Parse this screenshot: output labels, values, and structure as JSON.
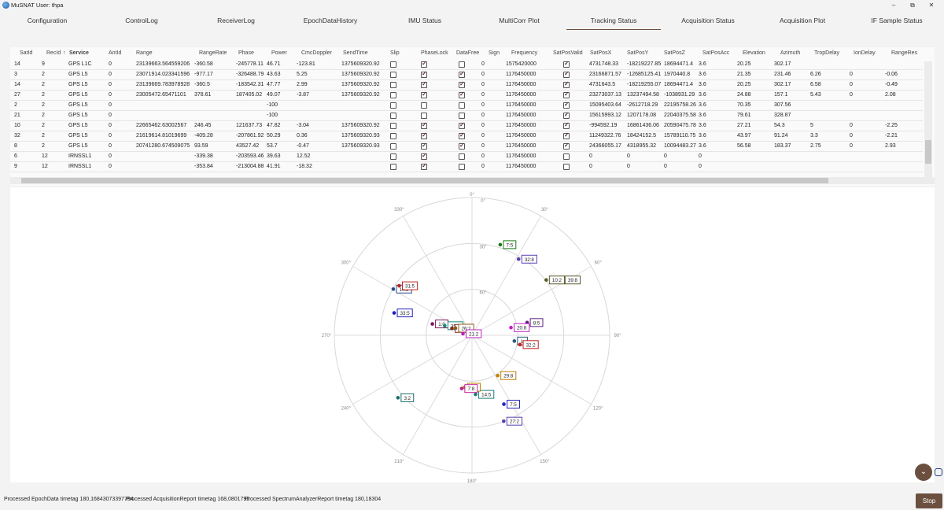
{
  "window": {
    "title": "MuSNAT User: thpa",
    "minimize": "–",
    "restore": "⧉",
    "close": "✕"
  },
  "tabs": [
    {
      "label": "Configuration",
      "active": false
    },
    {
      "label": "ControlLog",
      "active": false
    },
    {
      "label": "ReceiverLog",
      "active": false
    },
    {
      "label": "EpochDataHistory",
      "active": false
    },
    {
      "label": "IMU Status",
      "active": false
    },
    {
      "label": "MultiCorr Plot",
      "active": false
    },
    {
      "label": "Tracking Status",
      "active": true
    },
    {
      "label": "Acquisition Status",
      "active": false
    },
    {
      "label": "Acquisition Plot",
      "active": false
    },
    {
      "label": "IF Sample Status",
      "active": false
    }
  ],
  "table": {
    "sort_indicator": "↑",
    "columns": [
      "SatId",
      "RecId",
      "Service",
      "AntId",
      "Range",
      "RangeRate",
      "Phase",
      "Power",
      "CmcDoppler",
      "SendTime",
      "Slip",
      "PhaseLock",
      "DataFree",
      "Sign",
      "Frequency",
      "SatPosValid",
      "SatPosX",
      "SatPosY",
      "SatPosZ",
      "SatPosAcc",
      "Elevation",
      "Azimuth",
      "TropDelay",
      "IonDelay",
      "RangeRes"
    ],
    "rows": [
      {
        "SatId": "14",
        "RecId": "9",
        "Service": "GPS L1C",
        "AntId": "0",
        "Range": "23139663.564559206",
        "RangeRate": "-360.58",
        "Phase": "-245778.11",
        "Power": "46.71",
        "CmcDoppler": "-123.81",
        "SendTime": "1375609320.92",
        "Slip": false,
        "PhaseLock": true,
        "DataFree": false,
        "Sign": "0",
        "Frequency": "1575420000",
        "SatPosValid": true,
        "SatPosX": "4731748.33",
        "SatPosY": "-18219227.85",
        "SatPosZ": "18694471.4",
        "SatPosAcc": "3.6",
        "Elevation": "20.25",
        "Azimuth": "302.17",
        "TropDelay": "",
        "IonDelay": "",
        "RangeRes": ""
      },
      {
        "SatId": "3",
        "RecId": "2",
        "Service": "GPS L5",
        "AntId": "0",
        "Range": "23071914.023341596",
        "RangeRate": "-977.17",
        "Phase": "-326488.79",
        "Power": "43.63",
        "CmcDoppler": "5.25",
        "SendTime": "1375609320.92",
        "Slip": false,
        "PhaseLock": true,
        "DataFree": true,
        "Sign": "0",
        "Frequency": "1176450000",
        "SatPosValid": true,
        "SatPosX": "23166871.57",
        "SatPosY": "-12685125.41",
        "SatPosZ": "1970440.8",
        "SatPosAcc": "3.6",
        "Elevation": "21.35",
        "Azimuth": "231.46",
        "TropDelay": "6.26",
        "IonDelay": "0",
        "RangeRes": "-0.06"
      },
      {
        "SatId": "14",
        "RecId": "2",
        "Service": "GPS L5",
        "AntId": "0",
        "Range": "23139669.783978928",
        "RangeRate": "-360.5",
        "Phase": "-183542.31",
        "Power": "47.77",
        "CmcDoppler": "2.99",
        "SendTime": "1375609320.92",
        "Slip": false,
        "PhaseLock": true,
        "DataFree": true,
        "Sign": "0",
        "Frequency": "1176450000",
        "SatPosValid": true,
        "SatPosX": "4731643.5",
        "SatPosY": "-18219255.07",
        "SatPosZ": "18694471.4",
        "SatPosAcc": "3.6",
        "Elevation": "20.25",
        "Azimuth": "302.17",
        "TropDelay": "6.58",
        "IonDelay": "0",
        "RangeRes": "-0.49"
      },
      {
        "SatId": "27",
        "RecId": "2",
        "Service": "GPS L5",
        "AntId": "0",
        "Range": "23005472.65471101",
        "RangeRate": "378.61",
        "Phase": "187405.02",
        "Power": "49.07",
        "CmcDoppler": "-3.87",
        "SendTime": "1375609320.92",
        "Slip": false,
        "PhaseLock": true,
        "DataFree": true,
        "Sign": "0",
        "Frequency": "1176450000",
        "SatPosValid": true,
        "SatPosX": "23273037.13",
        "SatPosY": "13237494.58",
        "SatPosZ": "-1038931.29",
        "SatPosAcc": "3.6",
        "Elevation": "24.88",
        "Azimuth": "157.1",
        "TropDelay": "5.43",
        "IonDelay": "0",
        "RangeRes": "2.08"
      },
      {
        "SatId": "2",
        "RecId": "2",
        "Service": "GPS L5",
        "AntId": "0",
        "Range": "",
        "RangeRate": "",
        "Phase": "",
        "Power": "-100",
        "CmcDoppler": "",
        "SendTime": "",
        "Slip": false,
        "PhaseLock": false,
        "DataFree": false,
        "Sign": "0",
        "Frequency": "1176450000",
        "SatPosValid": true,
        "SatPosX": "15095403.64",
        "SatPosY": "-2612718.29",
        "SatPosZ": "22195758.26",
        "SatPosAcc": "3.6",
        "Elevation": "70.35",
        "Azimuth": "307.56",
        "TropDelay": "",
        "IonDelay": "",
        "RangeRes": ""
      },
      {
        "SatId": "21",
        "RecId": "2",
        "Service": "GPS L5",
        "AntId": "0",
        "Range": "",
        "RangeRate": "",
        "Phase": "",
        "Power": "-100",
        "CmcDoppler": "",
        "SendTime": "",
        "Slip": false,
        "PhaseLock": false,
        "DataFree": false,
        "Sign": "0",
        "Frequency": "1176450000",
        "SatPosValid": true,
        "SatPosX": "15615993.12",
        "SatPosY": "1207178.08",
        "SatPosZ": "22040375.58",
        "SatPosAcc": "3.6",
        "Elevation": "79.61",
        "Azimuth": "328.87",
        "TropDelay": "",
        "IonDelay": "",
        "RangeRes": ""
      },
      {
        "SatId": "10",
        "RecId": "2",
        "Service": "GPS L5",
        "AntId": "0",
        "Range": "22665462.63002567",
        "RangeRate": "246.45",
        "Phase": "121637.73",
        "Power": "47.82",
        "CmcDoppler": "-3.04",
        "SendTime": "1375609320.92",
        "Slip": false,
        "PhaseLock": true,
        "DataFree": true,
        "Sign": "0",
        "Frequency": "1176450000",
        "SatPosValid": true,
        "SatPosX": "-994592.19",
        "SatPosY": "16861436.06",
        "SatPosZ": "20590475.78",
        "SatPosAcc": "3.6",
        "Elevation": "27.21",
        "Azimuth": "54.3",
        "TropDelay": "5",
        "IonDelay": "0",
        "RangeRes": "-2.25"
      },
      {
        "SatId": "32",
        "RecId": "2",
        "Service": "GPS L5",
        "AntId": "0",
        "Range": "21619614.81019699",
        "RangeRate": "-409.28",
        "Phase": "-207861.92",
        "Power": "50.29",
        "CmcDoppler": "0.36",
        "SendTime": "1375609320.93",
        "Slip": false,
        "PhaseLock": true,
        "DataFree": true,
        "Sign": "0",
        "Frequency": "1176450000",
        "SatPosValid": true,
        "SatPosX": "11249322.76",
        "SatPosY": "18424152.5",
        "SatPosZ": "15789110.75",
        "SatPosAcc": "3.6",
        "Elevation": "43.97",
        "Azimuth": "91.24",
        "TropDelay": "3.3",
        "IonDelay": "0",
        "RangeRes": "-2.21"
      },
      {
        "SatId": "8",
        "RecId": "2",
        "Service": "GPS L5",
        "AntId": "0",
        "Range": "20741280.674509075",
        "RangeRate": "93.59",
        "Phase": "43527.42",
        "Power": "53.7",
        "CmcDoppler": "-0.47",
        "SendTime": "1375609320.93",
        "Slip": false,
        "PhaseLock": true,
        "DataFree": true,
        "Sign": "0",
        "Frequency": "1176450000",
        "SatPosValid": true,
        "SatPosX": "24366055.17",
        "SatPosY": "4318955.32",
        "SatPosZ": "10094483.27",
        "SatPosAcc": "3.6",
        "Elevation": "56.58",
        "Azimuth": "183.37",
        "TropDelay": "2.75",
        "IonDelay": "0",
        "RangeRes": "2.93"
      },
      {
        "SatId": "6",
        "RecId": "12",
        "Service": "IRNSSL1",
        "AntId": "0",
        "Range": "",
        "RangeRate": "-339.38",
        "Phase": "-203593.46",
        "Power": "39.63",
        "CmcDoppler": "12.52",
        "SendTime": "",
        "Slip": false,
        "PhaseLock": true,
        "DataFree": false,
        "Sign": "0",
        "Frequency": "1176450000",
        "SatPosValid": false,
        "SatPosX": "0",
        "SatPosY": "0",
        "SatPosZ": "0",
        "SatPosAcc": "0",
        "Elevation": "",
        "Azimuth": "",
        "TropDelay": "",
        "IonDelay": "",
        "RangeRes": ""
      },
      {
        "SatId": "9",
        "RecId": "12",
        "Service": "IRNSSL1",
        "AntId": "0",
        "Range": "",
        "RangeRate": "-353.84",
        "Phase": "-213004.88",
        "Power": "41.91",
        "CmcDoppler": "-18.32",
        "SendTime": "",
        "Slip": false,
        "PhaseLock": true,
        "DataFree": false,
        "Sign": "0",
        "Frequency": "1176450000",
        "SatPosValid": false,
        "SatPosX": "0",
        "SatPosY": "0",
        "SatPosZ": "0",
        "SatPosAcc": "0",
        "Elevation": "",
        "Azimuth": "",
        "TropDelay": "",
        "IonDelay": "",
        "RangeRes": ""
      }
    ]
  },
  "skyplot": {
    "azimuth_labels": [
      "0°",
      "30°",
      "60°",
      "90°",
      "120°",
      "150°",
      "180°",
      "210°",
      "240°",
      "270°",
      "300°",
      "330°"
    ],
    "elevation_labels": [
      "0°",
      "30°",
      "60°"
    ],
    "satellites": [
      {
        "label": "7:5",
        "el": 27,
        "az": 20,
        "color": "#1a7a1a"
      },
      {
        "label": "32:8",
        "el": 30,
        "az": 34,
        "color": "#5b3fb0"
      },
      {
        "label": "10:2",
        "el": 27,
        "az": 55,
        "color": "#5a5a2a"
      },
      {
        "label": "39:8",
        "el": 27,
        "az": 55,
        "color": "#5a5a2a",
        "extra": true
      },
      {
        "label": "8:5",
        "el": 50,
        "az": 78,
        "color": "#5b2080"
      },
      {
        "label": "20:8",
        "el": 61,
        "az": 80,
        "color": "#c020c0"
      },
      {
        "label": "1:",
        "el": 59,
        "az": 97,
        "color": "#2a5a7a"
      },
      {
        "label": "32:2",
        "el": 55,
        "az": 100,
        "color": "#c02020"
      },
      {
        "label": "29:8",
        "el": 57,
        "az": 143,
        "color": "#c08000"
      },
      {
        "label": "7:5",
        "el": 39,
        "az": 152,
        "color": "#2020c0"
      },
      {
        "label": "27:2",
        "el": 29,
        "az": 157,
        "color": "#5b3fb0"
      },
      {
        "label": "14:5",
        "el": 51,
        "az": 172,
        "color": "#1a7a7a"
      },
      {
        "label": "8:2",
        "el": 56,
        "az": 183,
        "color": "#c08000"
      },
      {
        "label": "7:8",
        "el": 55,
        "az": 186,
        "color": "#c020a0"
      },
      {
        "label": "3:2",
        "el": 29,
        "az": 228,
        "color": "#1a6a6a"
      },
      {
        "label": "33:5",
        "el": 40,
        "az": 287,
        "color": "#2020c0"
      },
      {
        "label": "1:0",
        "el": 66,
        "az": 288,
        "color": "#7a1a5a"
      },
      {
        "label": "35:8",
        "el": 74,
        "az": 293,
        "color": "#1a8a7a"
      },
      {
        "label": "14:2",
        "el": 33,
        "az": 302,
        "color": "#2a4a8a"
      },
      {
        "label": "31:5",
        "el": 35,
        "az": 306,
        "color": "#c02020"
      },
      {
        "label": "2:2",
        "el": 79,
        "az": 294,
        "color": "#8a2a2a"
      },
      {
        "label": "26:2",
        "el": 81,
        "az": 301,
        "color": "#8a5a1a"
      },
      {
        "label": "21:2",
        "el": 87,
        "az": 290,
        "color": "#c020c0"
      }
    ]
  },
  "status": {
    "epoch": "Processed EpochData timetag 180,16843073397794",
    "acq": "Processed AcquisitionReport timetag 168,0801792",
    "spectrum": "Processed SpectrumAnalyzerReport timetag 180,18304"
  },
  "buttons": {
    "stop": "Stop",
    "scroll_down": "⌄"
  }
}
